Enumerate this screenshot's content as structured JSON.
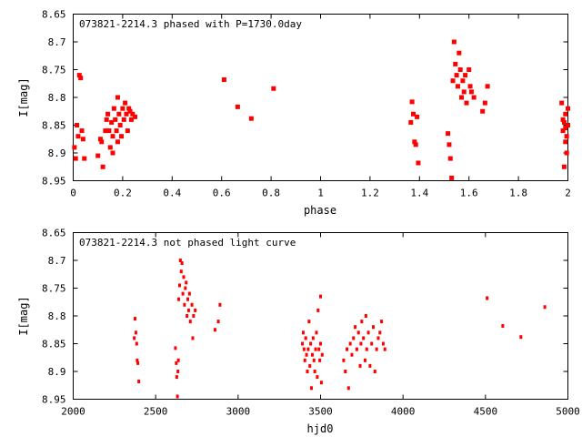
{
  "chart_data": [
    {
      "type": "scatter",
      "title": "073821-2214.3 phased with P=1730.0day",
      "xlabel": "phase",
      "ylabel": "I[mag]",
      "xlim": [
        0,
        2
      ],
      "ylim": [
        8.65,
        8.95
      ],
      "y_inverted": true,
      "grid": false,
      "legend": "none",
      "marker": "square",
      "color": "#ff0000",
      "x_ticks": [
        "0",
        "0.2",
        "0.4",
        "0.6",
        "0.8",
        "1",
        "1.2",
        "1.4",
        "1.6",
        "1.8",
        "2"
      ],
      "y_ticks": [
        "8.65",
        "8.7",
        "8.75",
        "8.8",
        "8.85",
        "8.9",
        "8.95"
      ],
      "x_tick_values": [
        0,
        0.2,
        0.4,
        0.6,
        0.8,
        1.0,
        1.2,
        1.4,
        1.6,
        1.8,
        2.0
      ],
      "y_tick_values": [
        8.65,
        8.7,
        8.75,
        8.8,
        8.85,
        8.9,
        8.95
      ],
      "points": [
        [
          0.005,
          8.89
        ],
        [
          0.01,
          8.91
        ],
        [
          0.015,
          8.85
        ],
        [
          0.02,
          8.87
        ],
        [
          0.025,
          8.76
        ],
        [
          0.03,
          8.765
        ],
        [
          0.035,
          8.86
        ],
        [
          0.04,
          8.875
        ],
        [
          0.045,
          8.91
        ],
        [
          0.1,
          8.905
        ],
        [
          0.11,
          8.875
        ],
        [
          0.115,
          8.88
        ],
        [
          0.12,
          8.925
        ],
        [
          0.13,
          8.86
        ],
        [
          0.135,
          8.84
        ],
        [
          0.14,
          8.83
        ],
        [
          0.145,
          8.86
        ],
        [
          0.15,
          8.89
        ],
        [
          0.155,
          8.845
        ],
        [
          0.16,
          8.87
        ],
        [
          0.165,
          8.82
        ],
        [
          0.17,
          8.84
        ],
        [
          0.175,
          8.86
        ],
        [
          0.18,
          8.8
        ],
        [
          0.185,
          8.83
        ],
        [
          0.19,
          8.85
        ],
        [
          0.195,
          8.87
        ],
        [
          0.2,
          8.82
        ],
        [
          0.205,
          8.84
        ],
        [
          0.21,
          8.81
        ],
        [
          0.215,
          8.83
        ],
        [
          0.22,
          8.86
        ],
        [
          0.225,
          8.82
        ],
        [
          0.23,
          8.825
        ],
        [
          0.235,
          8.84
        ],
        [
          0.24,
          8.83
        ],
        [
          0.25,
          8.835
        ],
        [
          0.16,
          8.9
        ],
        [
          0.18,
          8.88
        ],
        [
          0.61,
          8.768
        ],
        [
          0.665,
          8.817
        ],
        [
          0.72,
          8.838
        ],
        [
          0.81,
          8.784
        ],
        [
          1.365,
          8.845
        ],
        [
          1.37,
          8.808
        ],
        [
          1.375,
          8.83
        ],
        [
          1.38,
          8.88
        ],
        [
          1.385,
          8.885
        ],
        [
          1.39,
          8.835
        ],
        [
          1.395,
          8.918
        ],
        [
          1.515,
          8.865
        ],
        [
          1.52,
          8.885
        ],
        [
          1.525,
          8.91
        ],
        [
          1.53,
          8.945
        ],
        [
          1.535,
          8.77
        ],
        [
          1.54,
          8.7
        ],
        [
          1.545,
          8.74
        ],
        [
          1.55,
          8.76
        ],
        [
          1.555,
          8.78
        ],
        [
          1.56,
          8.72
        ],
        [
          1.565,
          8.75
        ],
        [
          1.57,
          8.8
        ],
        [
          1.575,
          8.77
        ],
        [
          1.58,
          8.79
        ],
        [
          1.585,
          8.76
        ],
        [
          1.59,
          8.81
        ],
        [
          1.6,
          8.75
        ],
        [
          1.605,
          8.78
        ],
        [
          1.61,
          8.79
        ],
        [
          1.62,
          8.8
        ],
        [
          1.655,
          8.825
        ],
        [
          1.665,
          8.81
        ],
        [
          1.675,
          8.78
        ],
        [
          1.975,
          8.81
        ],
        [
          1.98,
          8.86
        ],
        [
          1.985,
          8.845
        ],
        [
          1.99,
          8.83
        ],
        [
          1.995,
          8.87
        ],
        [
          2.0,
          8.85
        ],
        [
          1.99,
          8.88
        ],
        [
          1.995,
          8.9
        ],
        [
          1.985,
          8.925
        ],
        [
          1.98,
          8.84
        ],
        [
          1.99,
          8.855
        ],
        [
          2.0,
          8.82
        ]
      ]
    },
    {
      "type": "scatter",
      "title": "073821-2214.3 not phased light curve",
      "xlabel": "hjd0",
      "ylabel": "I[mag]",
      "xlim": [
        2000,
        5000
      ],
      "ylim": [
        8.65,
        8.95
      ],
      "y_inverted": true,
      "grid": false,
      "legend": "none",
      "marker": "dot",
      "color": "#ff0000",
      "x_ticks": [
        "2000",
        "2500",
        "3000",
        "3500",
        "4000",
        "4500",
        "5000"
      ],
      "y_ticks": [
        "8.65",
        "8.7",
        "8.75",
        "8.8",
        "8.85",
        "8.9",
        "8.95"
      ],
      "x_tick_values": [
        2000,
        2500,
        3000,
        3500,
        4000,
        4500,
        5000
      ],
      "y_tick_values": [
        8.65,
        8.7,
        8.75,
        8.8,
        8.85,
        8.9,
        8.95
      ],
      "points": [
        [
          2370,
          8.84
        ],
        [
          2375,
          8.805
        ],
        [
          2380,
          8.83
        ],
        [
          2385,
          8.85
        ],
        [
          2388,
          8.88
        ],
        [
          2392,
          8.885
        ],
        [
          2398,
          8.918
        ],
        [
          2620,
          8.858
        ],
        [
          2625,
          8.885
        ],
        [
          2628,
          8.91
        ],
        [
          2632,
          8.945
        ],
        [
          2635,
          8.9
        ],
        [
          2638,
          8.88
        ],
        [
          2640,
          8.77
        ],
        [
          2645,
          8.745
        ],
        [
          2650,
          8.7
        ],
        [
          2655,
          8.72
        ],
        [
          2660,
          8.705
        ],
        [
          2665,
          8.76
        ],
        [
          2670,
          8.73
        ],
        [
          2675,
          8.78
        ],
        [
          2680,
          8.75
        ],
        [
          2685,
          8.74
        ],
        [
          2690,
          8.8
        ],
        [
          2695,
          8.77
        ],
        [
          2700,
          8.79
        ],
        [
          2705,
          8.76
        ],
        [
          2710,
          8.81
        ],
        [
          2720,
          8.78
        ],
        [
          2730,
          8.8
        ],
        [
          2740,
          8.79
        ],
        [
          2725,
          8.84
        ],
        [
          2860,
          8.825
        ],
        [
          2880,
          8.81
        ],
        [
          2890,
          8.78
        ],
        [
          3390,
          8.85
        ],
        [
          3395,
          8.83
        ],
        [
          3400,
          8.86
        ],
        [
          3405,
          8.88
        ],
        [
          3410,
          8.84
        ],
        [
          3415,
          8.87
        ],
        [
          3420,
          8.9
        ],
        [
          3425,
          8.86
        ],
        [
          3430,
          8.81
        ],
        [
          3435,
          8.89
        ],
        [
          3440,
          8.85
        ],
        [
          3445,
          8.93
        ],
        [
          3450,
          8.87
        ],
        [
          3455,
          8.84
        ],
        [
          3460,
          8.88
        ],
        [
          3465,
          8.9
        ],
        [
          3470,
          8.86
        ],
        [
          3475,
          8.83
        ],
        [
          3480,
          8.91
        ],
        [
          3485,
          8.79
        ],
        [
          3490,
          8.86
        ],
        [
          3495,
          8.88
        ],
        [
          3500,
          8.85
        ],
        [
          3505,
          8.92
        ],
        [
          3510,
          8.87
        ],
        [
          3500,
          8.765
        ],
        [
          3640,
          8.88
        ],
        [
          3650,
          8.9
        ],
        [
          3660,
          8.86
        ],
        [
          3670,
          8.93
        ],
        [
          3680,
          8.85
        ],
        [
          3690,
          8.87
        ],
        [
          3700,
          8.84
        ],
        [
          3710,
          8.82
        ],
        [
          3720,
          8.86
        ],
        [
          3730,
          8.83
        ],
        [
          3740,
          8.89
        ],
        [
          3745,
          8.85
        ],
        [
          3750,
          8.81
        ],
        [
          3760,
          8.84
        ],
        [
          3770,
          8.88
        ],
        [
          3775,
          8.8
        ],
        [
          3780,
          8.86
        ],
        [
          3790,
          8.83
        ],
        [
          3800,
          8.89
        ],
        [
          3810,
          8.85
        ],
        [
          3820,
          8.82
        ],
        [
          3830,
          8.9
        ],
        [
          3840,
          8.86
        ],
        [
          3850,
          8.84
        ],
        [
          3860,
          8.83
        ],
        [
          3870,
          8.81
        ],
        [
          3880,
          8.85
        ],
        [
          3890,
          8.86
        ],
        [
          4510,
          8.768
        ],
        [
          4605,
          8.818
        ],
        [
          4715,
          8.838
        ],
        [
          4860,
          8.784
        ]
      ]
    }
  ]
}
